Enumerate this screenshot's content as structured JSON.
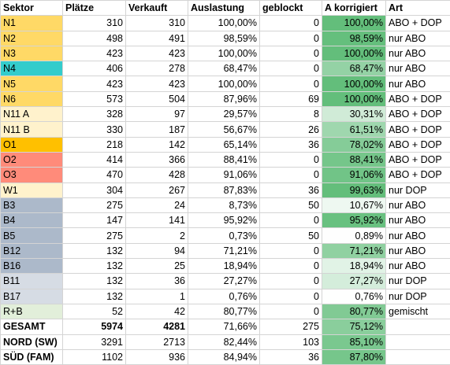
{
  "colors": {
    "yellow": "#ffd966",
    "teal": "#33cccc",
    "cream": "#fff2cc",
    "orange": "#ffc000",
    "red": "#ff8b7a",
    "gray_blue": "#acb9ca",
    "light_gray_blue": "#d6dce4",
    "light_green": "#e2efda"
  },
  "headers": [
    "Sektor",
    "Plätze",
    "Verkauft",
    "Auslastung",
    "geblockt",
    "A korrigiert",
    "Art"
  ],
  "rows": [
    {
      "sektor": "N1",
      "plaetze": "310",
      "verkauft": "310",
      "auslastung": "100,00%",
      "geblockt": "0",
      "korrigiert": "100,00%",
      "pct": 1.0,
      "art": "ABO + DOP",
      "sektor_color": "#ffd966"
    },
    {
      "sektor": "N2",
      "plaetze": "498",
      "verkauft": "491",
      "auslastung": "98,59%",
      "geblockt": "0",
      "korrigiert": "98,59%",
      "pct": 0.9859,
      "art": "nur ABO",
      "sektor_color": "#ffd966"
    },
    {
      "sektor": "N3",
      "plaetze": "423",
      "verkauft": "423",
      "auslastung": "100,00%",
      "geblockt": "0",
      "korrigiert": "100,00%",
      "pct": 1.0,
      "art": "nur ABO",
      "sektor_color": "#ffd966"
    },
    {
      "sektor": "N4",
      "plaetze": "406",
      "verkauft": "278",
      "auslastung": "68,47%",
      "geblockt": "0",
      "korrigiert": "68,47%",
      "pct": 0.6847,
      "art": "nur ABO",
      "sektor_color": "#33cccc"
    },
    {
      "sektor": "N5",
      "plaetze": "423",
      "verkauft": "423",
      "auslastung": "100,00%",
      "geblockt": "0",
      "korrigiert": "100,00%",
      "pct": 1.0,
      "art": "nur ABO",
      "sektor_color": "#ffd966"
    },
    {
      "sektor": "N6",
      "plaetze": "573",
      "verkauft": "504",
      "auslastung": "87,96%",
      "geblockt": "69",
      "korrigiert": "100,00%",
      "pct": 1.0,
      "art": "ABO + DOP",
      "sektor_color": "#ffd966"
    },
    {
      "sektor": "N11 A",
      "plaetze": "328",
      "verkauft": "97",
      "auslastung": "29,57%",
      "geblockt": "8",
      "korrigiert": "30,31%",
      "pct": 0.3031,
      "art": "ABO + DOP",
      "sektor_color": "#fff2cc"
    },
    {
      "sektor": "N11 B",
      "plaetze": "330",
      "verkauft": "187",
      "auslastung": "56,67%",
      "geblockt": "26",
      "korrigiert": "61,51%",
      "pct": 0.6151,
      "art": "ABO + DOP",
      "sektor_color": "#fff2cc"
    },
    {
      "sektor": "O1",
      "plaetze": "218",
      "verkauft": "142",
      "auslastung": "65,14%",
      "geblockt": "36",
      "korrigiert": "78,02%",
      "pct": 0.7802,
      "art": "ABO + DOP",
      "sektor_color": "#ffc000"
    },
    {
      "sektor": "O2",
      "plaetze": "414",
      "verkauft": "366",
      "auslastung": "88,41%",
      "geblockt": "0",
      "korrigiert": "88,41%",
      "pct": 0.8841,
      "art": "ABO + DOP",
      "sektor_color": "#ff8b7a"
    },
    {
      "sektor": "O3",
      "plaetze": "470",
      "verkauft": "428",
      "auslastung": "91,06%",
      "geblockt": "0",
      "korrigiert": "91,06%",
      "pct": 0.9106,
      "art": "ABO + DOP",
      "sektor_color": "#ff8b7a"
    },
    {
      "sektor": "W1",
      "plaetze": "304",
      "verkauft": "267",
      "auslastung": "87,83%",
      "geblockt": "36",
      "korrigiert": "99,63%",
      "pct": 0.9963,
      "art": "nur DOP",
      "sektor_color": "#fff2cc"
    },
    {
      "sektor": "B3",
      "plaetze": "275",
      "verkauft": "24",
      "auslastung": "8,73%",
      "geblockt": "50",
      "korrigiert": "10,67%",
      "pct": 0.1067,
      "art": "nur ABO",
      "sektor_color": "#acb9ca"
    },
    {
      "sektor": "B4",
      "plaetze": "147",
      "verkauft": "141",
      "auslastung": "95,92%",
      "geblockt": "0",
      "korrigiert": "95,92%",
      "pct": 0.9592,
      "art": "nur ABO",
      "sektor_color": "#acb9ca"
    },
    {
      "sektor": "B5",
      "plaetze": "275",
      "verkauft": "2",
      "auslastung": "0,73%",
      "geblockt": "50",
      "korrigiert": "0,89%",
      "pct": 0.0089,
      "art": "nur ABO",
      "sektor_color": "#acb9ca"
    },
    {
      "sektor": "B12",
      "plaetze": "132",
      "verkauft": "94",
      "auslastung": "71,21%",
      "geblockt": "0",
      "korrigiert": "71,21%",
      "pct": 0.7121,
      "art": "nur ABO",
      "sektor_color": "#acb9ca"
    },
    {
      "sektor": "B16",
      "plaetze": "132",
      "verkauft": "25",
      "auslastung": "18,94%",
      "geblockt": "0",
      "korrigiert": "18,94%",
      "pct": 0.1894,
      "art": "nur ABO",
      "sektor_color": "#acb9ca"
    },
    {
      "sektor": "B11",
      "plaetze": "132",
      "verkauft": "36",
      "auslastung": "27,27%",
      "geblockt": "0",
      "korrigiert": "27,27%",
      "pct": 0.2727,
      "art": "nur DOP",
      "sektor_color": "#d6dce4"
    },
    {
      "sektor": "B17",
      "plaetze": "132",
      "verkauft": "1",
      "auslastung": "0,76%",
      "geblockt": "0",
      "korrigiert": "0,76%",
      "pct": 0.0076,
      "art": "nur DOP",
      "sektor_color": "#d6dce4"
    },
    {
      "sektor": "R+B",
      "plaetze": "52",
      "verkauft": "42",
      "auslastung": "80,77%",
      "geblockt": "0",
      "korrigiert": "80,77%",
      "pct": 0.8077,
      "art": "gemischt",
      "sektor_color": "#e2efda"
    }
  ],
  "totals": [
    {
      "sektor": "GESAMT",
      "plaetze": "5974",
      "verkauft": "4281",
      "auslastung": "71,66%",
      "geblockt": "275",
      "korrigiert": "75,12%",
      "pct": 0.7512,
      "art": "",
      "bold_cols": [
        "sektor",
        "plaetze",
        "verkauft"
      ]
    },
    {
      "sektor": "NORD (SW)",
      "plaetze": "3291",
      "verkauft": "2713",
      "auslastung": "82,44%",
      "geblockt": "103",
      "korrigiert": "85,10%",
      "pct": 0.851,
      "art": "",
      "bold_cols": [
        "sektor"
      ]
    },
    {
      "sektor": "SÜD (FAM)",
      "plaetze": "1102",
      "verkauft": "936",
      "auslastung": "84,94%",
      "geblockt": "36",
      "korrigiert": "87,80%",
      "pct": 0.878,
      "art": "",
      "bold_cols": [
        "sektor"
      ]
    }
  ]
}
